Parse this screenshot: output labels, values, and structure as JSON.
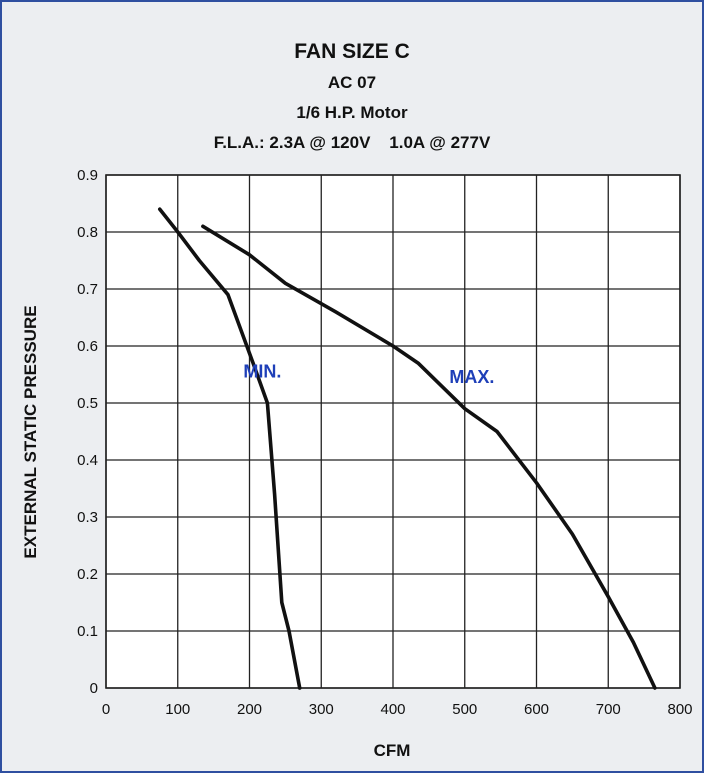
{
  "chart_data": {
    "type": "line",
    "title": "FAN SIZE C",
    "subtitle_lines": [
      "AC 07",
      "1/6 H.P. Motor",
      "F.L.A.: 2.3A @ 120V    1.0A @ 277V"
    ],
    "xlabel": "CFM",
    "ylabel": "EXTERNAL STATIC PRESSURE",
    "xlim": [
      0,
      800
    ],
    "ylim": [
      0,
      0.9
    ],
    "x_ticks": [
      "0",
      "100",
      "200",
      "300",
      "400",
      "500",
      "600",
      "700",
      "800"
    ],
    "y_ticks": [
      "0",
      "0.1",
      "0.2",
      "0.3",
      "0.4",
      "0.5",
      "0.6",
      "0.7",
      "0.8",
      "0.9"
    ],
    "grid": true,
    "series": [
      {
        "name": "MIN.",
        "x": [
          75,
          100,
          130,
          170,
          205,
          225,
          235,
          245,
          255,
          270
        ],
        "y": [
          0.84,
          0.8,
          0.75,
          0.69,
          0.57,
          0.5,
          0.34,
          0.15,
          0.1,
          0.0
        ],
        "color": "#111111",
        "label_color": "#1e3fb8"
      },
      {
        "name": "MAX.",
        "x": [
          135,
          200,
          250,
          320,
          400,
          435,
          500,
          545,
          600,
          650,
          700,
          735,
          765
        ],
        "y": [
          0.81,
          0.76,
          0.71,
          0.66,
          0.6,
          0.57,
          0.49,
          0.45,
          0.36,
          0.27,
          0.16,
          0.08,
          0.0
        ],
        "color": "#111111",
        "label_color": "#1e3fb8"
      }
    ]
  }
}
